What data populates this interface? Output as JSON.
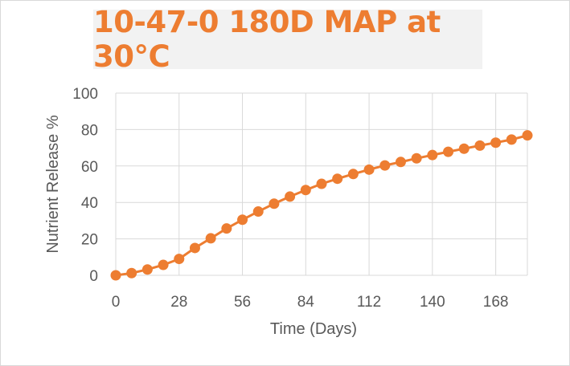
{
  "chart_data": {
    "type": "line",
    "title": "10-47-0 180D MAP at 30°C",
    "xlabel": "Time (Days)",
    "ylabel": "Nutrient Release %",
    "xlim": [
      0,
      182
    ],
    "ylim": [
      0,
      100
    ],
    "x_ticks": [
      0,
      28,
      56,
      84,
      112,
      140,
      168
    ],
    "y_ticks": [
      0,
      20,
      40,
      60,
      80,
      100
    ],
    "grid": true,
    "legend": "none",
    "series": [
      {
        "color": "#ed7d31",
        "x": [
          0,
          7,
          14,
          21,
          28,
          35,
          42,
          49,
          56,
          63,
          70,
          77,
          84,
          91,
          98,
          105,
          112,
          119,
          126,
          133,
          140,
          147,
          154,
          161,
          168,
          175,
          182
        ],
        "y": [
          0,
          1.2,
          3.2,
          5.7,
          9,
          15,
          20.3,
          25.7,
          30.5,
          35,
          39.3,
          43.2,
          46.8,
          50.2,
          53,
          55.6,
          58,
          60.3,
          62.2,
          64.2,
          66,
          67.8,
          69.5,
          71.2,
          72.8,
          74.5,
          76.8
        ]
      }
    ]
  }
}
